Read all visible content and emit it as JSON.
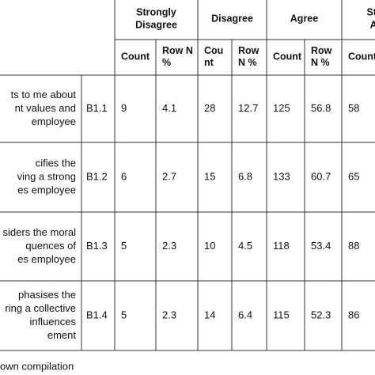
{
  "header": {
    "groups": [
      [
        "Strongly",
        "Disagree"
      ],
      [
        "Disagree"
      ],
      [
        "Agree"
      ],
      [
        "Stro",
        "Ag"
      ]
    ],
    "subheaders": [
      [
        "Count"
      ],
      [
        "Row  N",
        "%"
      ],
      [
        "Cou",
        "nt"
      ],
      [
        "Row",
        "N %"
      ],
      [
        "Count"
      ],
      [
        "Row",
        "N %"
      ],
      [
        "Count"
      ]
    ]
  },
  "table": {
    "rows": [
      {
        "label": [
          "ts to me about",
          "nt values and",
          "employee"
        ],
        "code": "B1.1",
        "cells": [
          "9",
          "4.1",
          "28",
          "12.7",
          "125",
          "56.8",
          "58"
        ]
      },
      {
        "label": [
          "cifies the",
          "ving a strong",
          "es employee"
        ],
        "code": "B1.2",
        "cells": [
          "6",
          "2.7",
          "15",
          "6.8",
          "133",
          "60.7",
          "65"
        ]
      },
      {
        "label": [
          "siders the moral",
          "quences of",
          "es employee"
        ],
        "code": "B1.3",
        "cells": [
          "5",
          "2.3",
          "10",
          "4.5",
          "118",
          "53.4",
          "88"
        ]
      },
      {
        "label": [
          "phasises the",
          "ring a collective",
          "influences",
          "ement"
        ],
        "code": "B1.4",
        "cells": [
          "5",
          "2.3",
          "14",
          "6.4",
          "115",
          "52.3",
          "86"
        ]
      }
    ]
  },
  "footer": "own compilation"
}
